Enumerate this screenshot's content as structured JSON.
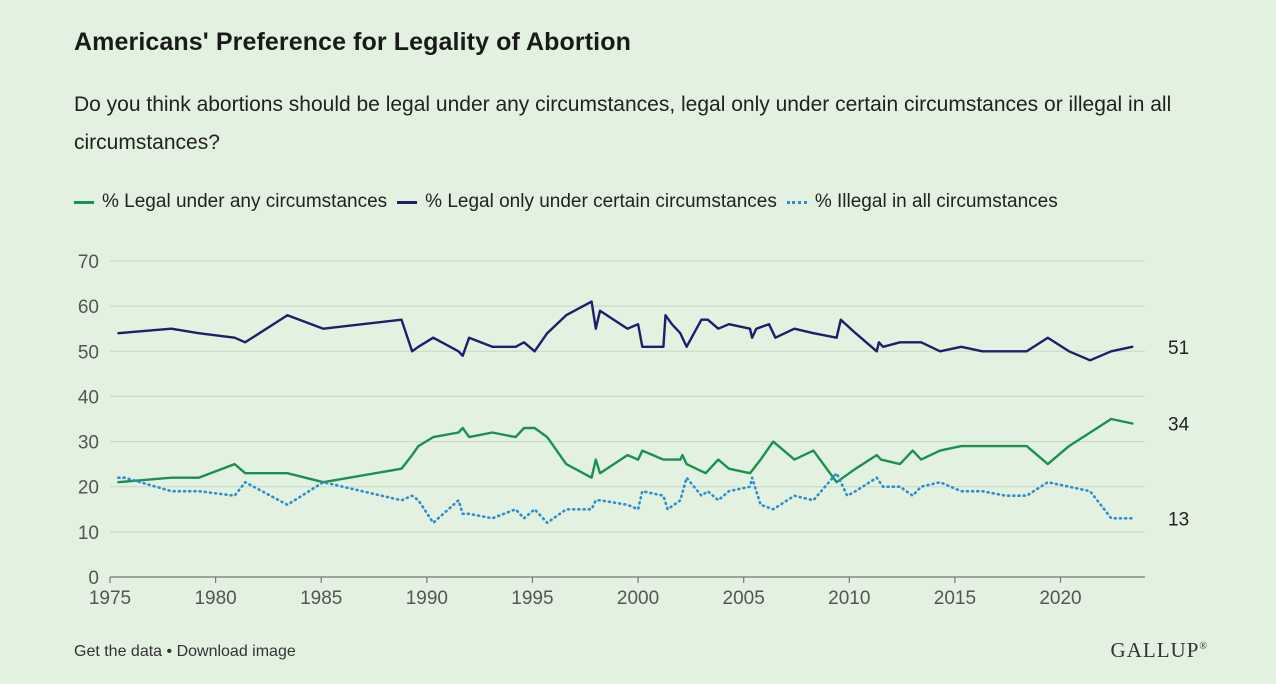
{
  "header": {
    "title": "Americans' Preference for Legality of Abortion",
    "subtitle": "Do you think abortions should be legal under any circumstances, legal only under certain circumstances or illegal in all circumstances?"
  },
  "footer": {
    "get_data": "Get the data",
    "separator": " • ",
    "download": "Download image",
    "logo": "GALLUP",
    "logo_mark": "®"
  },
  "chart_data": {
    "type": "line",
    "title": "Americans' Preference for Legality of Abortion",
    "xlabel": "",
    "ylabel": "",
    "xlim": [
      1975,
      2024
    ],
    "ylim": [
      0,
      70
    ],
    "xticks": [
      1975,
      1980,
      1985,
      1990,
      1995,
      2000,
      2005,
      2010,
      2015,
      2020
    ],
    "yticks": [
      0,
      10,
      20,
      30,
      40,
      50,
      60,
      70
    ],
    "grid": true,
    "legend_position": "top",
    "series": [
      {
        "name": "% Legal under any circumstances",
        "color": "#1a9150",
        "style": "solid",
        "end_label": "34",
        "x": [
          1975.4,
          1977.9,
          1979.2,
          1980.9,
          1981.4,
          1983.4,
          1985.1,
          1988.8,
          1989.3,
          1989.6,
          1990.3,
          1991.5,
          1991.7,
          1992.0,
          1993.1,
          1994.2,
          1994.6,
          1995.1,
          1995.7,
          1996.6,
          1997.8,
          1998.0,
          1998.2,
          1999.5,
          2000.0,
          2000.2,
          2001.2,
          2002.0,
          2002.1,
          2002.3,
          2003.2,
          2003.8,
          2004.3,
          2005.3,
          2005.8,
          2006.4,
          2007.4,
          2008.3,
          2009.4,
          2010.3,
          2011.3,
          2011.5,
          2012.4,
          2013.0,
          2013.4,
          2014.3,
          2015.3,
          2016.3,
          2018.4,
          2019.4,
          2020.4,
          2022.4,
          2023.4
        ],
        "values": [
          21,
          22,
          22,
          25,
          23,
          23,
          21,
          24,
          27,
          29,
          31,
          32,
          33,
          31,
          32,
          31,
          33,
          33,
          31,
          25,
          22,
          26,
          23,
          27,
          26,
          28,
          26,
          26,
          27,
          25,
          23,
          26,
          24,
          23,
          26,
          30,
          26,
          28,
          21,
          24,
          27,
          26,
          25,
          28,
          26,
          28,
          29,
          29,
          29,
          25,
          29,
          35,
          34
        ]
      },
      {
        "name": "% Legal only under certain circumstances",
        "color": "#1c1f6b",
        "style": "solid",
        "end_label": "51",
        "x": [
          1975.4,
          1977.9,
          1979.2,
          1980.9,
          1981.4,
          1983.4,
          1985.1,
          1988.8,
          1989.3,
          1989.6,
          1990.3,
          1991.5,
          1991.7,
          1992.0,
          1993.1,
          1994.2,
          1994.6,
          1995.1,
          1995.7,
          1996.6,
          1997.8,
          1998.0,
          1998.2,
          1999.5,
          2000.0,
          2000.2,
          2001.2,
          2001.3,
          2001.6,
          2002.0,
          2002.3,
          2003.0,
          2003.3,
          2003.8,
          2004.3,
          2005.3,
          2005.4,
          2005.6,
          2006.2,
          2006.5,
          2007.4,
          2008.3,
          2009.4,
          2009.6,
          2010.3,
          2011.3,
          2011.4,
          2011.6,
          2012.4,
          2013.4,
          2014.3,
          2015.3,
          2016.3,
          2018.4,
          2019.4,
          2020.4,
          2021.4,
          2022.4,
          2023.4
        ],
        "values": [
          54,
          55,
          54,
          53,
          52,
          58,
          55,
          57,
          50,
          51,
          53,
          50,
          49,
          53,
          51,
          51,
          52,
          50,
          54,
          58,
          61,
          55,
          59,
          55,
          56,
          51,
          51,
          58,
          56,
          54,
          51,
          57,
          57,
          55,
          56,
          55,
          53,
          55,
          56,
          53,
          55,
          54,
          53,
          57,
          54,
          50,
          52,
          51,
          52,
          52,
          50,
          51,
          50,
          50,
          53,
          50,
          48,
          50,
          51
        ]
      },
      {
        "name": "% Illegal in all circumstances",
        "color": "#2b8fd0",
        "style": "dotted",
        "end_label": "13",
        "x": [
          1975.4,
          1975.7,
          1977.9,
          1979.2,
          1980.9,
          1981.4,
          1983.4,
          1985.1,
          1988.8,
          1989.3,
          1989.6,
          1990.3,
          1991.5,
          1991.7,
          1992.0,
          1993.1,
          1994.2,
          1994.6,
          1995.1,
          1995.7,
          1996.6,
          1997.8,
          1998.0,
          1998.2,
          1999.5,
          2000.0,
          2000.2,
          2001.2,
          2001.4,
          2002.0,
          2002.3,
          2003.0,
          2003.3,
          2003.8,
          2004.3,
          2005.3,
          2005.4,
          2005.8,
          2006.4,
          2007.4,
          2008.3,
          2009.4,
          2009.9,
          2010.3,
          2011.3,
          2011.6,
          2012.4,
          2013.0,
          2013.4,
          2014.3,
          2015.3,
          2016.3,
          2017.4,
          2018.4,
          2019.4,
          2020.4,
          2021.4,
          2022.4,
          2023.4
        ],
        "values": [
          22,
          22,
          19,
          19,
          18,
          21,
          16,
          21,
          17,
          18,
          17,
          12,
          17,
          14,
          14,
          13,
          15,
          13,
          15,
          12,
          15,
          15,
          17,
          17,
          16,
          15,
          19,
          18,
          15,
          17,
          22,
          18,
          19,
          17,
          19,
          20,
          22,
          16,
          15,
          18,
          17,
          23,
          18,
          19,
          22,
          20,
          20,
          18,
          20,
          21,
          19,
          19,
          18,
          18,
          21,
          20,
          19,
          13,
          13
        ]
      }
    ]
  }
}
